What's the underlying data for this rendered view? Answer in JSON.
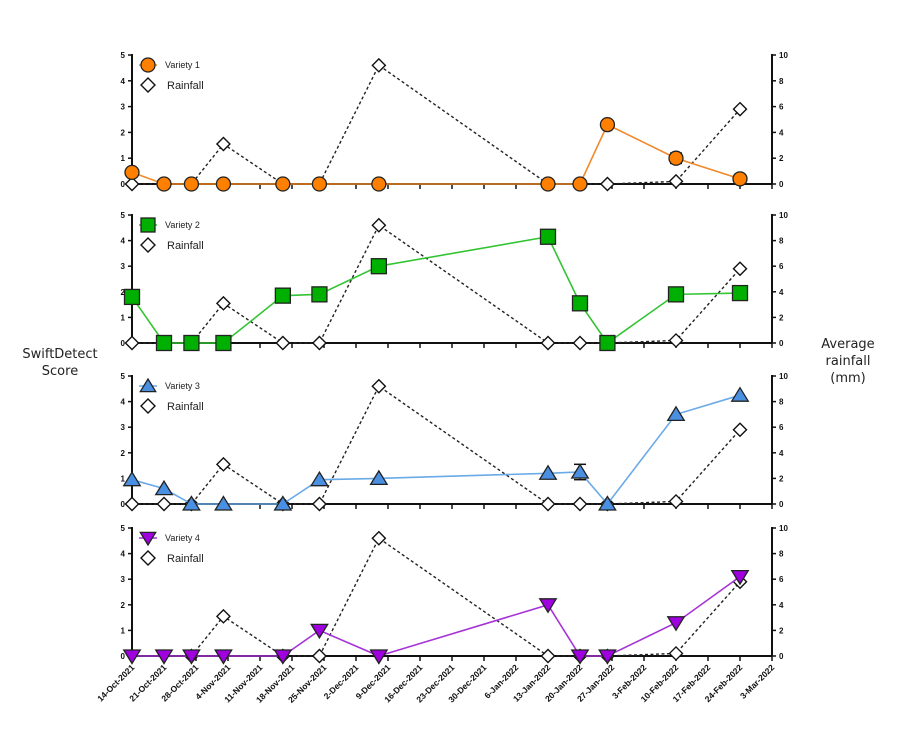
{
  "chart_data": {
    "type": "line",
    "layout": "four vertically stacked panels sharing x-axis, dual y-axes",
    "ylabel_left": "SwiftDetect Score",
    "ylabel_right": "Average rainfall (mm)",
    "y_left_range": [
      0,
      5
    ],
    "y_left_ticks": [
      "0",
      "1",
      "2",
      "3",
      "4",
      "5"
    ],
    "y_right_range": [
      0,
      10
    ],
    "y_right_ticks": [
      "0",
      "2",
      "4",
      "6",
      "8",
      "10"
    ],
    "x_ticks": [
      "14-Oct-2021",
      "21-Oct-2021",
      "28-Oct-2021",
      "4-Nov-2021",
      "11-Nov-2021",
      "18-Nov-2021",
      "25-Nov-2021",
      "2-Dec-2021",
      "9-Dec-2021",
      "16-Dec-2021",
      "23-Dec-2021",
      "30-Dec-2021",
      "6-Jan-2022",
      "13-Jan-2022",
      "20-Jan-2022",
      "27-Jan-2022",
      "3-Feb-2022",
      "10-Feb-2022",
      "17-Feb-2022",
      "24-Feb-2022",
      "3-Mar-2022"
    ],
    "x_range_days": [
      0,
      140
    ],
    "rainfall": {
      "name": "Rainfall",
      "color": "#000000",
      "days": [
        0,
        7,
        14,
        21,
        33,
        41,
        54,
        91,
        98,
        104,
        119,
        133
      ],
      "values": [
        0,
        0,
        0,
        3.1,
        0,
        0,
        9.2,
        0,
        0,
        0,
        0.2,
        5.8
      ]
    },
    "panels": [
      {
        "name": "Variety 1",
        "legend": "Variety 1",
        "marker": "circle",
        "color": "#ff8000",
        "line_color": "#f0892a",
        "days": [
          0,
          7,
          13,
          20,
          33,
          41,
          54,
          91,
          98,
          104,
          119,
          133
        ],
        "values": [
          0.45,
          0,
          0,
          0,
          0,
          0,
          0,
          0,
          0,
          2.3,
          1.0,
          0.2
        ],
        "errors": [
          0,
          0,
          0,
          0,
          0,
          0,
          0,
          0,
          0,
          0,
          0.2,
          0
        ],
        "rain_days": [
          0,
          13,
          20,
          33,
          41,
          54,
          91,
          98,
          104,
          119,
          133
        ],
        "rain_values": [
          0,
          0,
          3.1,
          0,
          0,
          9.2,
          0,
          0,
          0,
          0.2,
          5.8
        ]
      },
      {
        "name": "Variety 2",
        "legend": "Variety 2",
        "marker": "square",
        "color": "#00b000",
        "line_color": "#33c433",
        "days": [
          0,
          7,
          13,
          20,
          33,
          41,
          54,
          91,
          98,
          104,
          119,
          133
        ],
        "values": [
          1.8,
          0,
          0,
          0,
          1.85,
          1.9,
          3.0,
          4.15,
          1.55,
          0,
          1.9,
          1.95
        ],
        "errors": [
          0,
          0,
          0,
          0,
          0,
          0,
          0,
          0,
          0,
          0,
          0,
          0
        ],
        "rain_days": [
          0,
          13,
          20,
          33,
          41,
          54,
          91,
          98,
          104,
          119,
          133
        ],
        "rain_values": [
          0,
          0,
          3.1,
          0,
          0,
          9.2,
          0,
          0,
          0,
          0.2,
          5.8
        ]
      },
      {
        "name": "Variety 3",
        "legend": "Variety 3",
        "marker": "triangle-up",
        "color": "#4a90e2",
        "line_color": "#6aaae8",
        "days": [
          0,
          7,
          13,
          20,
          33,
          41,
          54,
          91,
          98,
          104,
          119,
          133
        ],
        "values": [
          0.95,
          0.6,
          0,
          0,
          0,
          0.95,
          1.0,
          1.2,
          1.25,
          0,
          3.5,
          4.25
        ],
        "errors": [
          0,
          0,
          0,
          0,
          0,
          0,
          0,
          0,
          0.3,
          0,
          0,
          0
        ],
        "rain_days": [
          0,
          7,
          13,
          20,
          33,
          41,
          54,
          91,
          98,
          104,
          119,
          133
        ],
        "rain_values": [
          0,
          0,
          0,
          3.1,
          0,
          0,
          9.2,
          0,
          0,
          0,
          0.2,
          5.8
        ]
      },
      {
        "name": "Variety 4",
        "legend": "Variety 4",
        "marker": "triangle-down",
        "color": "#a000e0",
        "line_color": "#a633d6",
        "days": [
          0,
          7,
          13,
          20,
          33,
          41,
          54,
          91,
          98,
          104,
          119,
          133
        ],
        "values": [
          0,
          0,
          0,
          0,
          0,
          1.0,
          0,
          2.0,
          0,
          0,
          1.3,
          3.1
        ],
        "errors": [
          0,
          0,
          0,
          0,
          0,
          0,
          0,
          0,
          0,
          0,
          0,
          0
        ],
        "rain_days": [
          13,
          20,
          33,
          41,
          54,
          91,
          98,
          104,
          119,
          133
        ],
        "rain_values": [
          0,
          3.1,
          0,
          0,
          9.2,
          0,
          0,
          0,
          0.2,
          5.8
        ]
      }
    ],
    "legend_rainfall_label": "Rainfall",
    "grid": false,
    "legend_placement": "top-left of each panel"
  }
}
